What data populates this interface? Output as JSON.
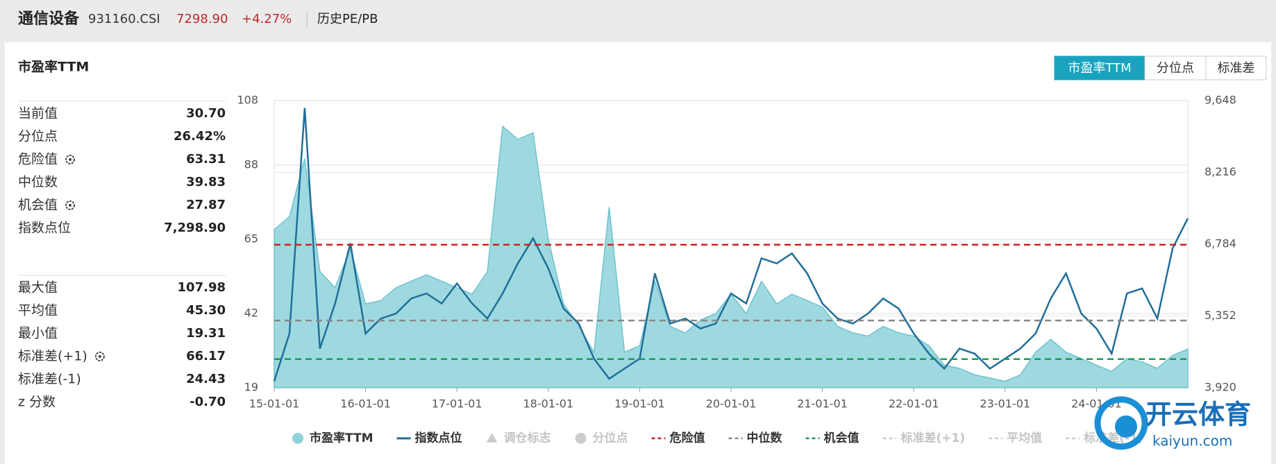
{
  "header": {
    "title": "通信设备",
    "code": "931160.CSI",
    "price": "7298.90",
    "change": "+4.27%",
    "link": "历史PE/PB"
  },
  "panel_title": "市盈率TTM",
  "tabs": [
    "市盈率TTM",
    "分位点",
    "标准差"
  ],
  "stats": [
    [
      {
        "label": "当前值",
        "value": "30.70"
      },
      {
        "label": "分位点",
        "value": "26.42%"
      },
      {
        "label": "危险值",
        "value": "63.31",
        "gear": true
      },
      {
        "label": "中位数",
        "value": "39.83"
      },
      {
        "label": "机会值",
        "value": "27.87",
        "gear": true
      },
      {
        "label": "指数点位",
        "value": "7,298.90"
      }
    ],
    [
      {
        "label": "最大值",
        "value": "107.98"
      },
      {
        "label": "平均值",
        "value": "45.30"
      },
      {
        "label": "最小值",
        "value": "19.31"
      },
      {
        "label": "标准差(+1)",
        "value": "66.17",
        "gear": true
      },
      {
        "label": "标准差(-1)",
        "value": "24.43"
      },
      {
        "label": "z 分数",
        "value": "-0.70"
      }
    ]
  ],
  "chart_data": {
    "type": "line",
    "x": [
      "15-01-01",
      "15-03-01",
      "15-05-01",
      "15-07-01",
      "15-09-01",
      "15-11-01",
      "16-01-01",
      "16-03-01",
      "16-05-01",
      "16-07-01",
      "16-09-01",
      "16-11-01",
      "17-01-01",
      "17-03-01",
      "17-05-01",
      "17-07-01",
      "17-09-01",
      "17-11-01",
      "18-01-01",
      "18-03-01",
      "18-05-01",
      "18-07-01",
      "18-09-01",
      "18-11-01",
      "19-01-01",
      "19-03-01",
      "19-05-01",
      "19-07-01",
      "19-09-01",
      "19-11-01",
      "20-01-01",
      "20-03-01",
      "20-05-01",
      "20-07-01",
      "20-09-01",
      "20-11-01",
      "21-01-01",
      "21-03-01",
      "21-05-01",
      "21-07-01",
      "21-09-01",
      "21-11-01",
      "22-01-01",
      "22-03-01",
      "22-05-01",
      "22-07-01",
      "22-09-01",
      "22-11-01",
      "23-01-01",
      "23-03-01",
      "23-05-01",
      "23-07-01",
      "23-09-01",
      "23-11-01",
      "24-01-01",
      "24-03-01",
      "24-05-01",
      "24-07-01",
      "24-09-01",
      "24-11-01",
      "25-01-01"
    ],
    "xlim": [
      "15-01-01",
      "25-01-01"
    ],
    "xticks": [
      "15-01-01",
      "16-01-01",
      "17-01-01",
      "18-01-01",
      "19-01-01",
      "20-01-01",
      "21-01-01",
      "22-01-01",
      "23-01-01",
      "24-01-01"
    ],
    "series": [
      {
        "name": "市盈率TTM",
        "color": "#8ed2da",
        "kind": "area",
        "values": [
          68,
          72,
          90,
          55,
          50,
          62,
          45,
          46,
          50,
          52,
          54,
          52,
          50,
          48,
          55,
          100,
          96,
          98,
          65,
          45,
          38,
          30,
          75,
          30,
          32,
          52,
          38,
          36,
          40,
          42,
          48,
          42,
          52,
          45,
          48,
          46,
          44,
          38,
          36,
          35,
          38,
          36,
          35,
          32,
          26,
          25,
          23,
          22,
          21,
          23,
          30,
          34,
          30,
          28,
          26,
          24,
          28,
          27,
          25,
          29,
          31
        ]
      },
      {
        "name": "指数点位",
        "color": "#1f6e99",
        "kind": "line",
        "axis": "y2",
        "values": [
          4050,
          5000,
          9500,
          4700,
          5600,
          6800,
          5000,
          5300,
          5400,
          5700,
          5800,
          5600,
          6000,
          5600,
          5300,
          5800,
          6400,
          6900,
          6300,
          5500,
          5200,
          4500,
          4100,
          4300,
          4500,
          6200,
          5200,
          5300,
          5100,
          5200,
          5800,
          5600,
          6500,
          6400,
          6600,
          6200,
          5600,
          5300,
          5200,
          5400,
          5700,
          5500,
          5000,
          4600,
          4300,
          4700,
          4600,
          4300,
          4500,
          4700,
          5000,
          5700,
          6200,
          5400,
          5100,
          4600,
          5800,
          5900,
          5300,
          6700,
          7299
        ]
      }
    ],
    "reference_lines": [
      {
        "name": "危险值",
        "value": 63.31,
        "color": "#cc1f1f"
      },
      {
        "name": "中位数",
        "value": 39.83,
        "color": "#888888"
      },
      {
        "name": "机会值",
        "value": 27.87,
        "color": "#1a9c5a"
      }
    ],
    "hidden_legend": [
      {
        "name": "调仓标志",
        "symbol": "triangle"
      },
      {
        "name": "分位点",
        "symbol": "circle"
      },
      {
        "name": "标准差(+1)",
        "symbol": "dash"
      },
      {
        "name": "平均值",
        "symbol": "dash"
      },
      {
        "name": "标准差(-1)",
        "symbol": "dash"
      }
    ],
    "ylim": [
      19,
      108
    ],
    "yticks": [
      19,
      42,
      65,
      88,
      108
    ],
    "y2lim": [
      3920,
      9648
    ],
    "y2ticks": [
      {
        "value": 3920,
        "label": "3,920"
      },
      {
        "value": 5352,
        "label": "5,352"
      },
      {
        "value": 6784,
        "label": "6,784"
      },
      {
        "value": 8216,
        "label": "8,216"
      },
      {
        "value": 9648,
        "label": "9,648"
      }
    ],
    "grid": true
  },
  "watermark": {
    "brand": "开云体育",
    "site": "kaiyun.com"
  }
}
